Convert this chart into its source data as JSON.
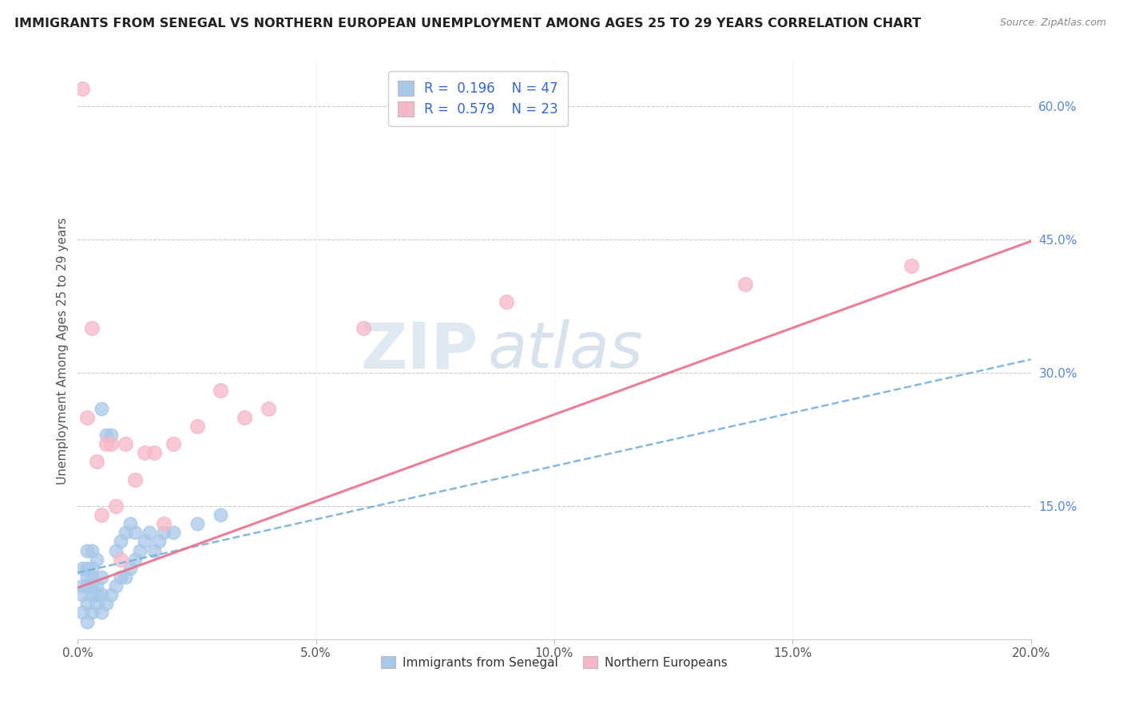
{
  "title": "IMMIGRANTS FROM SENEGAL VS NORTHERN EUROPEAN UNEMPLOYMENT AMONG AGES 25 TO 29 YEARS CORRELATION CHART",
  "source": "Source: ZipAtlas.com",
  "ylabel": "Unemployment Among Ages 25 to 29 years",
  "xlim": [
    0.0,
    0.2
  ],
  "ylim": [
    0.0,
    0.65
  ],
  "xticks": [
    0.0,
    0.05,
    0.1,
    0.15,
    0.2
  ],
  "xtick_labels": [
    "0.0%",
    "5.0%",
    "10.0%",
    "15.0%",
    "20.0%"
  ],
  "yticks": [
    0.0,
    0.15,
    0.3,
    0.45,
    0.6
  ],
  "ytick_labels": [
    "",
    "15.0%",
    "30.0%",
    "45.0%",
    "60.0%"
  ],
  "legend_blue_label": "Immigrants from Senegal",
  "legend_pink_label": "Northern Europeans",
  "R_blue": 0.196,
  "N_blue": 47,
  "R_pink": 0.579,
  "N_pink": 23,
  "blue_scatter_color": "#a8c8e8",
  "pink_scatter_color": "#f5b8c8",
  "blue_line_color": "#7ab0d8",
  "pink_line_color": "#e8708a",
  "watermark_zip": "ZIP",
  "watermark_atlas": "atlas",
  "blue_scatter_x": [
    0.001,
    0.001,
    0.001,
    0.001,
    0.002,
    0.002,
    0.002,
    0.002,
    0.002,
    0.002,
    0.003,
    0.003,
    0.003,
    0.003,
    0.003,
    0.003,
    0.004,
    0.004,
    0.004,
    0.004,
    0.005,
    0.005,
    0.005,
    0.005,
    0.006,
    0.006,
    0.007,
    0.007,
    0.008,
    0.008,
    0.009,
    0.009,
    0.01,
    0.01,
    0.011,
    0.011,
    0.012,
    0.012,
    0.013,
    0.014,
    0.015,
    0.016,
    0.017,
    0.018,
    0.02,
    0.025,
    0.03
  ],
  "blue_scatter_y": [
    0.03,
    0.05,
    0.06,
    0.08,
    0.02,
    0.04,
    0.06,
    0.07,
    0.08,
    0.1,
    0.03,
    0.05,
    0.06,
    0.07,
    0.08,
    0.1,
    0.04,
    0.05,
    0.06,
    0.09,
    0.03,
    0.05,
    0.07,
    0.26,
    0.04,
    0.23,
    0.05,
    0.23,
    0.06,
    0.1,
    0.07,
    0.11,
    0.07,
    0.12,
    0.08,
    0.13,
    0.09,
    0.12,
    0.1,
    0.11,
    0.12,
    0.1,
    0.11,
    0.12,
    0.12,
    0.13,
    0.14
  ],
  "pink_scatter_x": [
    0.001,
    0.002,
    0.003,
    0.004,
    0.005,
    0.006,
    0.007,
    0.008,
    0.009,
    0.01,
    0.012,
    0.014,
    0.016,
    0.018,
    0.02,
    0.025,
    0.03,
    0.035,
    0.04,
    0.06,
    0.09,
    0.14,
    0.175
  ],
  "pink_scatter_y": [
    0.62,
    0.25,
    0.35,
    0.2,
    0.14,
    0.22,
    0.22,
    0.15,
    0.09,
    0.22,
    0.18,
    0.21,
    0.21,
    0.13,
    0.22,
    0.24,
    0.28,
    0.25,
    0.26,
    0.35,
    0.38,
    0.4,
    0.42
  ],
  "blue_line_x0": 0.0,
  "blue_line_y0": 0.075,
  "blue_line_x1": 0.2,
  "blue_line_y1": 0.315,
  "pink_line_x0": 0.0,
  "pink_line_y0": 0.058,
  "pink_line_x1": 0.2,
  "pink_line_y1": 0.448
}
